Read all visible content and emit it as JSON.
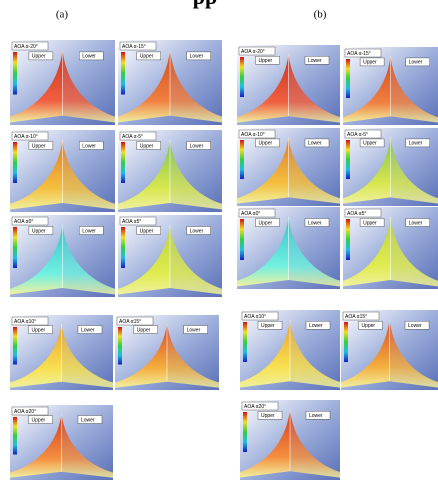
{
  "heading": "pp",
  "figures": [
    {
      "label": "(a)",
      "panels": [
        {
          "aoa": "AOA α-20°",
          "upper": "Upper",
          "lower": "Lower"
        },
        {
          "aoa": "AOA α-15°",
          "upper": "Upper",
          "lower": "Lower"
        },
        {
          "aoa": "AOA α-10°",
          "upper": "Upper",
          "lower": "Lower"
        },
        {
          "aoa": "AOA α-5°",
          "upper": "Upper",
          "lower": "Lower"
        },
        {
          "aoa": "AOA α0°",
          "upper": "Upper",
          "lower": "Lower"
        },
        {
          "aoa": "AOA α5°",
          "upper": "Upper",
          "lower": "Lower"
        },
        {
          "aoa": "AOA α10°",
          "upper": "Upper",
          "lower": "Lower"
        },
        {
          "aoa": "AOA α15°",
          "upper": "Upper",
          "lower": "Lower"
        },
        {
          "aoa": "AOA α20°",
          "upper": "Upper",
          "lower": "Lower"
        }
      ]
    },
    {
      "label": "(b)",
      "panels": [
        {
          "aoa": "AOA α-20°",
          "upper": "Upper",
          "lower": "Lower"
        },
        {
          "aoa": "AOA α-15°",
          "upper": "Upper",
          "lower": "Lower"
        },
        {
          "aoa": "AOA α-10°",
          "upper": "Upper",
          "lower": "Lower"
        },
        {
          "aoa": "AOA α-5°",
          "upper": "Upper",
          "lower": "Lower"
        },
        {
          "aoa": "AOA α0°",
          "upper": "Upper",
          "lower": "Lower"
        },
        {
          "aoa": "AOA α5°",
          "upper": "Upper",
          "lower": "Lower"
        },
        {
          "aoa": "AOA α10°",
          "upper": "Upper",
          "lower": "Lower"
        },
        {
          "aoa": "AOA α15°",
          "upper": "Upper",
          "lower": "Lower"
        },
        {
          "aoa": "AOA α20°",
          "upper": "Upper",
          "lower": "Lower"
        }
      ]
    }
  ]
}
